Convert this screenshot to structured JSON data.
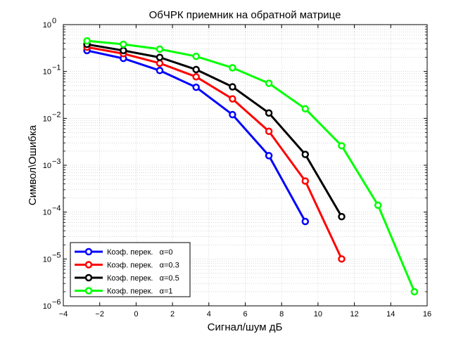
{
  "chart_data": {
    "type": "line",
    "title": "ОбЧРК приемник на обратной матрице",
    "xlabel": "Сигнал/шум дБ",
    "ylabel": "Символ\\Ошибка",
    "xlim": [
      -4,
      16
    ],
    "ylim": [
      1e-06,
      1
    ],
    "yscale": "log",
    "grid": true,
    "legend_position": "bottom-left",
    "x_ticks": [
      "−4",
      "−2",
      "0",
      "2",
      "4",
      "6",
      "8",
      "10",
      "12",
      "14",
      "16"
    ],
    "y_ticks": [
      {
        "base": "10",
        "exp": "0"
      },
      {
        "base": "10",
        "exp": "−1"
      },
      {
        "base": "10",
        "exp": "−2"
      },
      {
        "base": "10",
        "exp": "−3"
      },
      {
        "base": "10",
        "exp": "−4"
      },
      {
        "base": "10",
        "exp": "−5"
      },
      {
        "base": "10",
        "exp": "−6"
      }
    ],
    "series": [
      {
        "name": "Коэф. перек.   α=0",
        "color": "#0000ff",
        "x": [
          -2.7,
          -0.7,
          1.3,
          3.3,
          5.3,
          7.3,
          9.3
        ],
        "y": [
          0.28,
          0.19,
          0.105,
          0.046,
          0.012,
          0.0016,
          6.3e-05
        ]
      },
      {
        "name": "Коэф. перек.   α=0.3",
        "color": "#ff0000",
        "x": [
          -2.7,
          -0.7,
          1.3,
          3.3,
          5.3,
          7.3,
          9.3,
          11.3
        ],
        "y": [
          0.33,
          0.24,
          0.15,
          0.077,
          0.026,
          0.0053,
          0.00046,
          1e-05
        ]
      },
      {
        "name": "Коэф. перек.   α=0.5",
        "color": "#000000",
        "x": [
          -2.7,
          -0.7,
          1.3,
          3.3,
          5.3,
          7.3,
          9.3,
          11.3
        ],
        "y": [
          0.38,
          0.28,
          0.2,
          0.11,
          0.047,
          0.013,
          0.0017,
          8e-05
        ]
      },
      {
        "name": "Коэф. перек.   α=1",
        "color": "#00ff00",
        "x": [
          -2.7,
          -0.7,
          1.3,
          3.3,
          5.3,
          7.3,
          9.3,
          11.3,
          13.3,
          15.3
        ],
        "y": [
          0.45,
          0.38,
          0.3,
          0.21,
          0.12,
          0.056,
          0.016,
          0.0026,
          0.00014,
          2e-06
        ]
      }
    ]
  }
}
